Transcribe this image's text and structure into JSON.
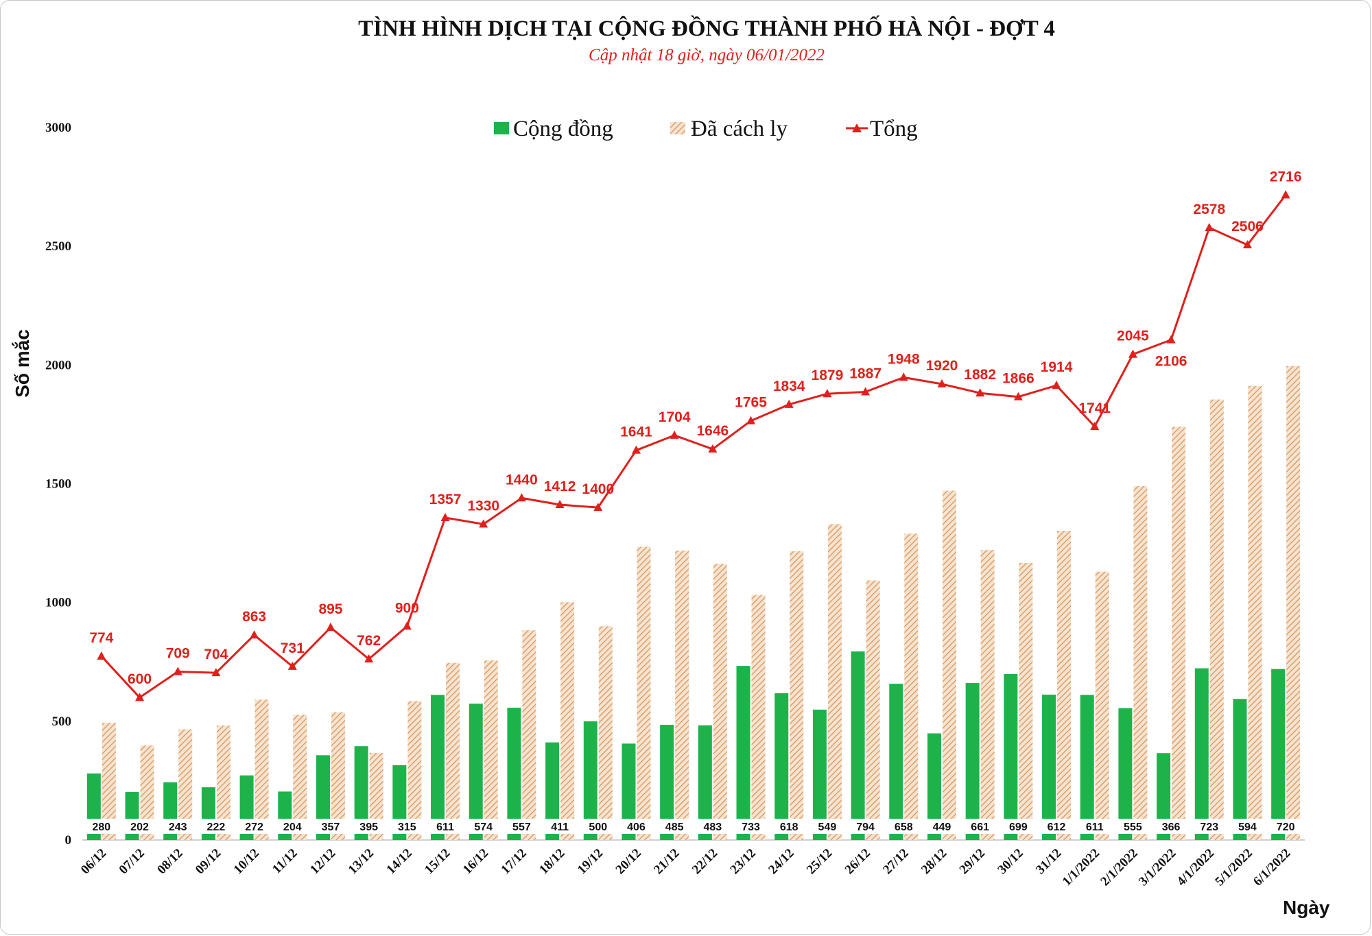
{
  "colors": {
    "cong_dong": "#1db34a",
    "da_cach_ly": "#e8b88a",
    "tong": "#e0201c"
  },
  "chart_data": {
    "type": "bar",
    "title": "TÌNH HÌNH DỊCH TẠI CỘNG ĐỒNG THÀNH PHỐ HÀ NỘI - ĐỢT 4",
    "subtitle": "Cập nhật 18 giờ, ngày 06/01/2022",
    "xlabel": "Ngày",
    "ylabel": "Số mắc",
    "ylim": [
      0,
      3000
    ],
    "yticks": [
      0,
      500,
      1000,
      1500,
      2000,
      2500,
      3000
    ],
    "grid": false,
    "legend_position": "top-center",
    "legend": [
      "Cộng đồng",
      "Đã cách ly",
      "Tổng"
    ],
    "categories": [
      "06/12",
      "07/12",
      "08/12",
      "09/12",
      "10/12",
      "11/12",
      "12/12",
      "13/12",
      "14/12",
      "15/12",
      "16/12",
      "17/12",
      "18/12",
      "19/12",
      "20/12",
      "21/12",
      "22/12",
      "23/12",
      "24/12",
      "25/12",
      "26/12",
      "27/12",
      "28/12",
      "29/12",
      "30/12",
      "31/12",
      "1/1/2022",
      "2/1/2022",
      "3/1/2022",
      "4/1/2022",
      "5/1/2022",
      "6/1/2022"
    ],
    "series": [
      {
        "name": "Cộng đồng",
        "type": "bar",
        "values": [
          280,
          202,
          243,
          222,
          272,
          204,
          357,
          395,
          315,
          611,
          574,
          557,
          411,
          500,
          406,
          485,
          483,
          733,
          618,
          549,
          794,
          658,
          449,
          661,
          699,
          612,
          611,
          555,
          366,
          723,
          594,
          720
        ]
      },
      {
        "name": "Đã cách ly",
        "type": "bar",
        "values": [
          494,
          398,
          466,
          482,
          591,
          527,
          538,
          367,
          585,
          746,
          756,
          883,
          1001,
          900,
          1235,
          1219,
          1163,
          1032,
          1216,
          1330,
          1093,
          1290,
          1471,
          1221,
          1167,
          1302,
          1130,
          1490,
          1740,
          1855,
          1912,
          1996
        ]
      },
      {
        "name": "Tổng",
        "type": "line",
        "values": [
          774,
          600,
          709,
          704,
          863,
          731,
          895,
          762,
          900,
          1357,
          1330,
          1440,
          1412,
          1400,
          1641,
          1704,
          1646,
          1765,
          1834,
          1879,
          1887,
          1948,
          1920,
          1882,
          1866,
          1914,
          1741,
          2045,
          2106,
          2578,
          2506,
          2716
        ]
      }
    ]
  }
}
